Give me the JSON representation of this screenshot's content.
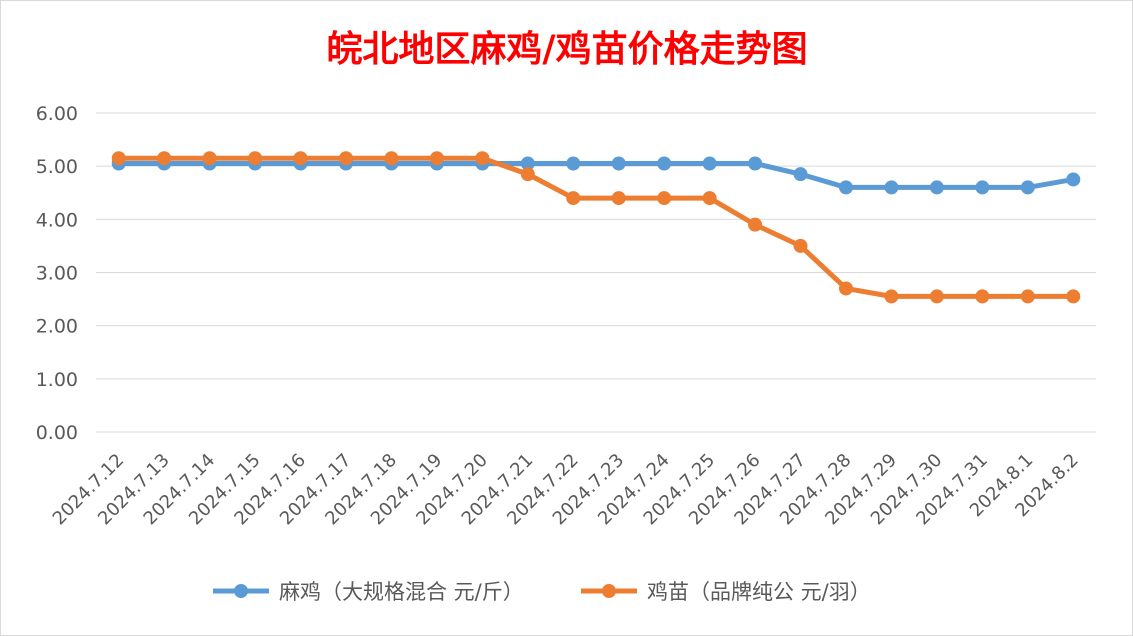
{
  "chart_data": {
    "type": "line",
    "title": "皖北地区麻鸡/鸡苗价格走势图",
    "title_color": "#ff0000",
    "xlabel": "",
    "ylabel": "",
    "ylim": [
      0,
      6
    ],
    "y_ticks": [
      "0.00",
      "1.00",
      "2.00",
      "3.00",
      "4.00",
      "5.00",
      "6.00"
    ],
    "grid": true,
    "legend_position": "bottom",
    "categories": [
      "2024.7.12",
      "2024.7.13",
      "2024.7.14",
      "2024.7.15",
      "2024.7.16",
      "2024.7.17",
      "2024.7.18",
      "2024.7.19",
      "2024.7.20",
      "2024.7.21",
      "2024.7.22",
      "2024.7.23",
      "2024.7.24",
      "2024.7.25",
      "2024.7.26",
      "2024.7.27",
      "2024.7.28",
      "2024.7.29",
      "2024.7.30",
      "2024.7.31",
      "2024.8.1",
      "2024.8.2"
    ],
    "series": [
      {
        "name": "麻鸡（大规格混合 元/斤）",
        "color": "#5b9bd5",
        "values": [
          5.05,
          5.05,
          5.05,
          5.05,
          5.05,
          5.05,
          5.05,
          5.05,
          5.05,
          5.05,
          5.05,
          5.05,
          5.05,
          5.05,
          5.05,
          4.85,
          4.6,
          4.6,
          4.6,
          4.6,
          4.6,
          4.75
        ]
      },
      {
        "name": "鸡苗（品牌纯公 元/羽）",
        "color": "#ed7d31",
        "values": [
          5.15,
          5.15,
          5.15,
          5.15,
          5.15,
          5.15,
          5.15,
          5.15,
          5.15,
          4.85,
          4.4,
          4.4,
          4.4,
          4.4,
          3.9,
          3.5,
          2.7,
          2.55,
          2.55,
          2.55,
          2.55,
          2.55
        ]
      }
    ]
  }
}
